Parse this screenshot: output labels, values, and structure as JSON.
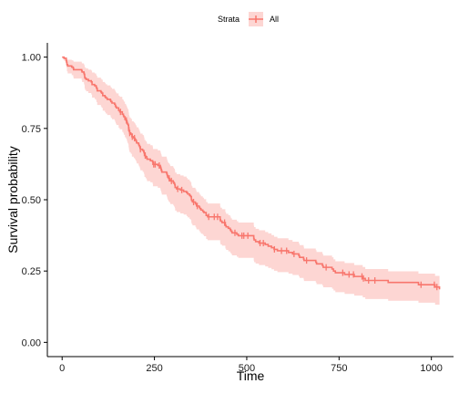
{
  "chart_data": {
    "type": "line",
    "subtype": "kaplan-meier",
    "xlabel": "Time",
    "ylabel": "Survival probability",
    "xlim": [
      -40,
      1060
    ],
    "ylim": [
      -0.05,
      1.05
    ],
    "x_ticks": [
      0,
      250,
      500,
      750,
      1000
    ],
    "y_ticks": [
      0.0,
      0.25,
      0.5,
      0.75,
      1.0
    ],
    "x_tick_labels": [
      "0",
      "250",
      "500",
      "750",
      "1000"
    ],
    "y_tick_labels": [
      "0.00",
      "0.25",
      "0.50",
      "0.75",
      "1.00"
    ],
    "legend": {
      "title": "Strata",
      "position": "top",
      "entries": [
        "All"
      ]
    },
    "grid": false,
    "colors": {
      "line": "#F8766D",
      "band": "#F8766D"
    },
    "series": [
      {
        "name": "All",
        "x": [
          0,
          5,
          11,
          12,
          13,
          15,
          26,
          30,
          31,
          53,
          54,
          59,
          60,
          61,
          62,
          65,
          71,
          79,
          81,
          88,
          92,
          93,
          95,
          105,
          107,
          110,
          116,
          118,
          122,
          131,
          132,
          135,
          142,
          144,
          145,
          147,
          153,
          156,
          163,
          166,
          167,
          170,
          173,
          175,
          176,
          177,
          179,
          180,
          181,
          182,
          183,
          186,
          189,
          194,
          197,
          199,
          201,
          202,
          207,
          208,
          210,
          211,
          212,
          218,
          221,
          222,
          223,
          226,
          229,
          230,
          239,
          245,
          246,
          259,
          266,
          267,
          268,
          269,
          270,
          283,
          284,
          285,
          286,
          288,
          291,
          293,
          301,
          303,
          305,
          306,
          310,
          320,
          329,
          337,
          340,
          345,
          348,
          350,
          351,
          353,
          361,
          363,
          364,
          371,
          373,
          376,
          381,
          384,
          390,
          394,
          428,
          429,
          433,
          442,
          444,
          450,
          455,
          457,
          460,
          473,
          477,
          519,
          520,
          524,
          533,
          550,
          558,
          567,
          574,
          583,
          613,
          624,
          641,
          643,
          654,
          655,
          687,
          689,
          705,
          707,
          731,
          735,
          740,
          765,
          791,
          814,
          821,
          883,
          965,
          1010,
          1022
        ],
        "survival": [
          1.0,
          0.996,
          0.987,
          0.982,
          0.974,
          0.969,
          0.965,
          0.961,
          0.956,
          0.952,
          0.948,
          0.943,
          0.939,
          0.93,
          0.926,
          0.922,
          0.917,
          0.913,
          0.904,
          0.9,
          0.896,
          0.891,
          0.882,
          0.878,
          0.874,
          0.865,
          0.861,
          0.857,
          0.852,
          0.848,
          0.844,
          0.839,
          0.835,
          0.83,
          0.826,
          0.822,
          0.813,
          0.808,
          0.8,
          0.795,
          0.791,
          0.782,
          0.778,
          0.774,
          0.769,
          0.765,
          0.761,
          0.752,
          0.743,
          0.739,
          0.734,
          0.73,
          0.721,
          0.716,
          0.712,
          0.708,
          0.703,
          0.699,
          0.695,
          0.69,
          0.686,
          0.681,
          0.677,
          0.673,
          0.668,
          0.664,
          0.655,
          0.651,
          0.646,
          0.642,
          0.637,
          0.633,
          0.624,
          0.62,
          0.615,
          0.611,
          0.606,
          0.602,
          0.597,
          0.593,
          0.588,
          0.584,
          0.579,
          0.575,
          0.57,
          0.566,
          0.561,
          0.557,
          0.552,
          0.543,
          0.538,
          0.534,
          0.529,
          0.525,
          0.52,
          0.515,
          0.511,
          0.501,
          0.497,
          0.492,
          0.487,
          0.483,
          0.478,
          0.474,
          0.469,
          0.464,
          0.459,
          0.455,
          0.445,
          0.44,
          0.43,
          0.425,
          0.42,
          0.41,
          0.405,
          0.4,
          0.395,
          0.39,
          0.384,
          0.379,
          0.374,
          0.364,
          0.359,
          0.353,
          0.348,
          0.343,
          0.337,
          0.332,
          0.326,
          0.321,
          0.315,
          0.31,
          0.304,
          0.298,
          0.292,
          0.287,
          0.281,
          0.275,
          0.269,
          0.263,
          0.257,
          0.25,
          0.244,
          0.238,
          0.231,
          0.224,
          0.217,
          0.21,
          0.202,
          0.194,
          0.186
        ],
        "upper": [
          1.0,
          1.0,
          1.0,
          1.0,
          0.995,
          0.991,
          0.989,
          0.987,
          0.984,
          0.981,
          0.978,
          0.975,
          0.972,
          0.966,
          0.963,
          0.96,
          0.956,
          0.953,
          0.946,
          0.943,
          0.939,
          0.935,
          0.928,
          0.924,
          0.921,
          0.913,
          0.909,
          0.905,
          0.901,
          0.897,
          0.893,
          0.889,
          0.885,
          0.881,
          0.877,
          0.873,
          0.865,
          0.861,
          0.852,
          0.848,
          0.844,
          0.836,
          0.831,
          0.827,
          0.823,
          0.819,
          0.815,
          0.806,
          0.797,
          0.793,
          0.788,
          0.784,
          0.775,
          0.771,
          0.767,
          0.762,
          0.758,
          0.754,
          0.749,
          0.745,
          0.74,
          0.736,
          0.732,
          0.727,
          0.723,
          0.718,
          0.71,
          0.705,
          0.7,
          0.696,
          0.691,
          0.687,
          0.678,
          0.673,
          0.669,
          0.664,
          0.66,
          0.655,
          0.651,
          0.646,
          0.641,
          0.637,
          0.632,
          0.628,
          0.623,
          0.618,
          0.613,
          0.609,
          0.604,
          0.595,
          0.59,
          0.585,
          0.581,
          0.576,
          0.571,
          0.566,
          0.561,
          0.552,
          0.547,
          0.542,
          0.537,
          0.532,
          0.527,
          0.522,
          0.517,
          0.512,
          0.507,
          0.502,
          0.492,
          0.487,
          0.477,
          0.472,
          0.467,
          0.457,
          0.451,
          0.446,
          0.441,
          0.435,
          0.43,
          0.425,
          0.42,
          0.409,
          0.404,
          0.398,
          0.393,
          0.387,
          0.382,
          0.376,
          0.37,
          0.365,
          0.359,
          0.353,
          0.347,
          0.341,
          0.335,
          0.329,
          0.323,
          0.317,
          0.31,
          0.304,
          0.298,
          0.291,
          0.284,
          0.278,
          0.271,
          0.264,
          0.257,
          0.249,
          0.241,
          0.233,
          0.225
        ],
        "lower": [
          1.0,
          0.987,
          0.971,
          0.963,
          0.95,
          0.943,
          0.937,
          0.931,
          0.925,
          0.919,
          0.913,
          0.907,
          0.902,
          0.891,
          0.885,
          0.88,
          0.874,
          0.869,
          0.858,
          0.853,
          0.848,
          0.842,
          0.832,
          0.827,
          0.822,
          0.812,
          0.807,
          0.802,
          0.797,
          0.792,
          0.787,
          0.782,
          0.777,
          0.772,
          0.767,
          0.762,
          0.752,
          0.747,
          0.738,
          0.733,
          0.728,
          0.719,
          0.714,
          0.709,
          0.704,
          0.699,
          0.694,
          0.684,
          0.675,
          0.67,
          0.666,
          0.661,
          0.651,
          0.646,
          0.642,
          0.637,
          0.632,
          0.627,
          0.622,
          0.617,
          0.613,
          0.608,
          0.603,
          0.598,
          0.594,
          0.589,
          0.58,
          0.575,
          0.57,
          0.565,
          0.561,
          0.556,
          0.547,
          0.542,
          0.537,
          0.532,
          0.528,
          0.523,
          0.518,
          0.513,
          0.509,
          0.504,
          0.499,
          0.494,
          0.49,
          0.485,
          0.48,
          0.476,
          0.471,
          0.462,
          0.457,
          0.452,
          0.448,
          0.443,
          0.438,
          0.433,
          0.429,
          0.419,
          0.415,
          0.41,
          0.405,
          0.4,
          0.396,
          0.391,
          0.386,
          0.381,
          0.377,
          0.372,
          0.362,
          0.358,
          0.348,
          0.343,
          0.339,
          0.329,
          0.324,
          0.319,
          0.315,
          0.31,
          0.305,
          0.3,
          0.296,
          0.286,
          0.281,
          0.276,
          0.271,
          0.266,
          0.261,
          0.256,
          0.251,
          0.246,
          0.241,
          0.236,
          0.231,
          0.226,
          0.22,
          0.215,
          0.21,
          0.204,
          0.199,
          0.193,
          0.188,
          0.182,
          0.176,
          0.17,
          0.164,
          0.158,
          0.152,
          0.146,
          0.139,
          0.132,
          0.125
        ],
        "censor_x": [
          158,
          174,
          180,
          183,
          190,
          196,
          212,
          225,
          248,
          252,
          263,
          290,
          296,
          313,
          324,
          356,
          366,
          397,
          412,
          421,
          440,
          468,
          487,
          492,
          503,
          536,
          545,
          575,
          594,
          608,
          628,
          662,
          715,
          760,
          777,
          789,
          812,
          816,
          830,
          847,
          972,
          1008,
          1015
        ]
      }
    ]
  }
}
